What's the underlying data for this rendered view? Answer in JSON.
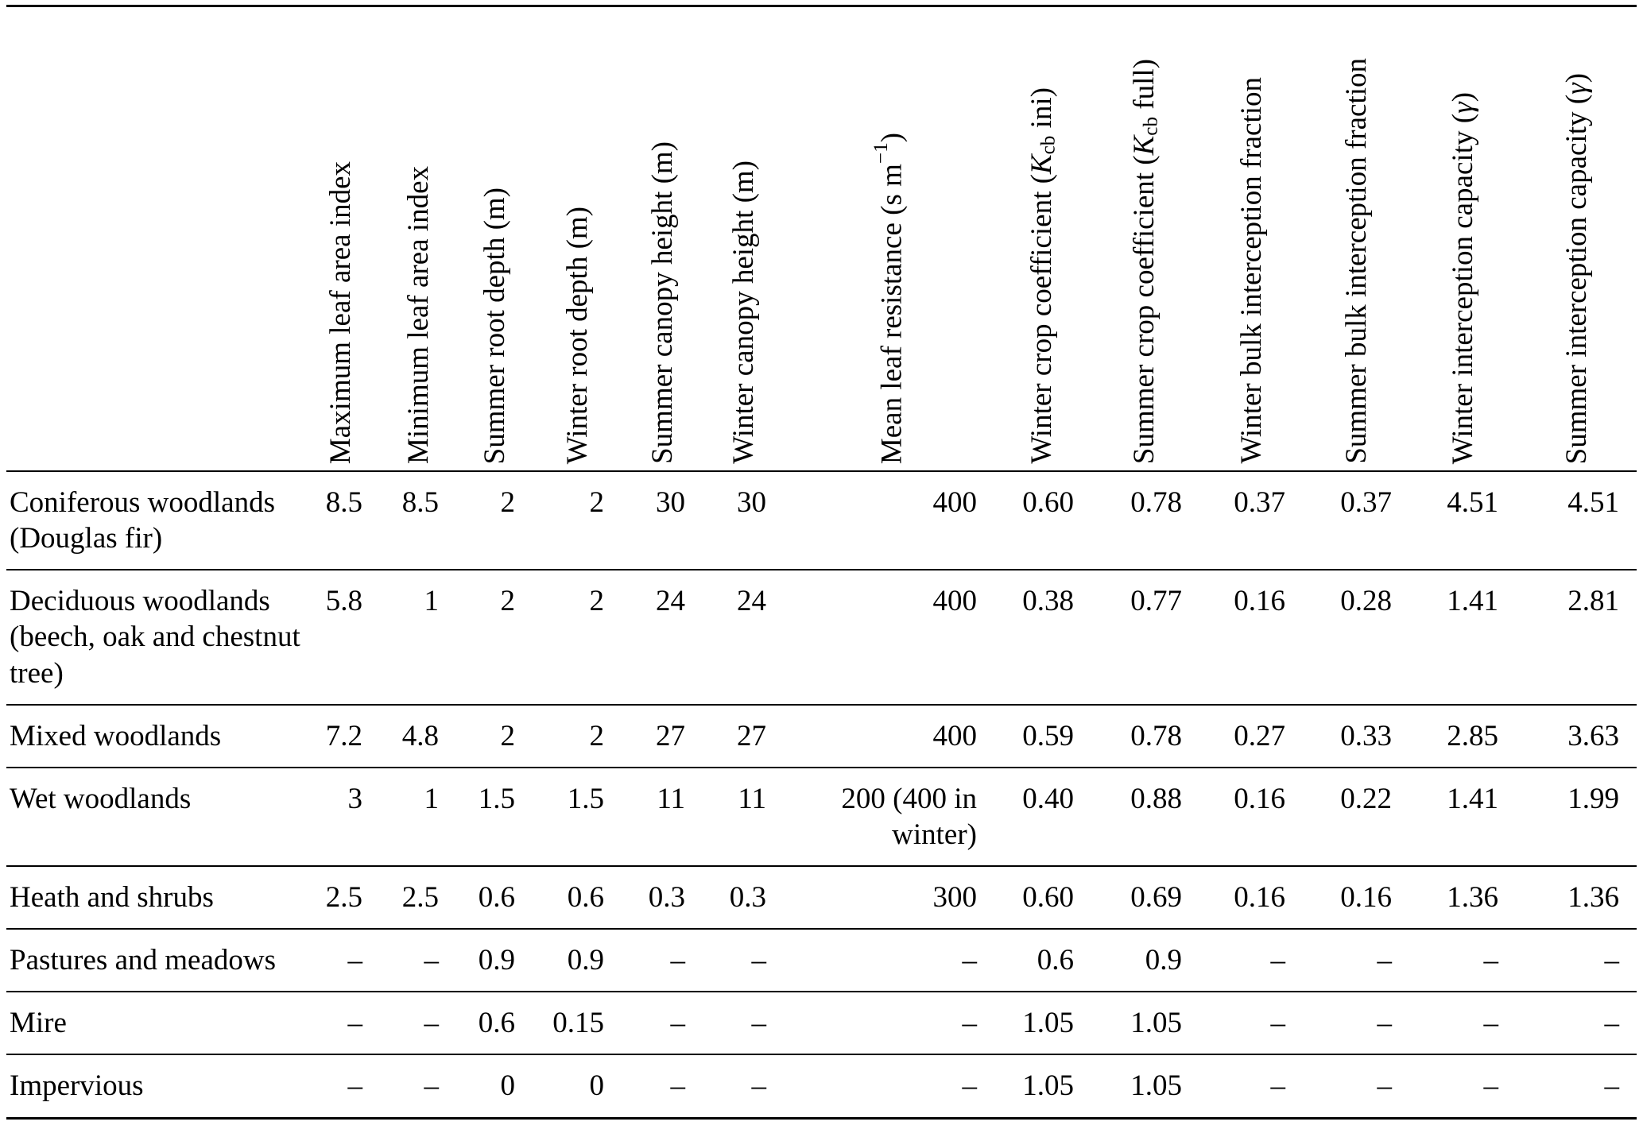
{
  "page": {
    "background": "#ffffff",
    "text_color": "#000000",
    "rule_color": "#000000"
  },
  "table": {
    "row_label_header": "",
    "columns": [
      {
        "name": "maximum-leaf-area-index",
        "segments": [
          {
            "text": "Maximum leaf area index"
          }
        ]
      },
      {
        "name": "minimum-leaf-area-index",
        "segments": [
          {
            "text": "Minimum leaf area index"
          }
        ]
      },
      {
        "name": "summer-root-depth",
        "segments": [
          {
            "text": "Summer root depth (m)"
          }
        ]
      },
      {
        "name": "winter-root-depth",
        "segments": [
          {
            "text": "Winter root depth (m)"
          }
        ]
      },
      {
        "name": "summer-canopy-height",
        "segments": [
          {
            "text": "Summer canopy height (m)"
          }
        ]
      },
      {
        "name": "winter-canopy-height",
        "segments": [
          {
            "text": "Winter canopy height (m)"
          }
        ]
      },
      {
        "name": "mean-leaf-resistance",
        "segments": [
          {
            "text": "Mean leaf resistance (s m"
          },
          {
            "sup": "−1"
          },
          {
            "text": ")"
          }
        ]
      },
      {
        "name": "winter-crop-coefficient",
        "segments": [
          {
            "text": "Winter crop coefficient ("
          },
          {
            "italic": "K"
          },
          {
            "sub": "cb"
          },
          {
            "text": " ini)"
          }
        ]
      },
      {
        "name": "summer-crop-coefficient",
        "segments": [
          {
            "text": "Summer crop coefficient ("
          },
          {
            "italic": "K"
          },
          {
            "sub": "cb"
          },
          {
            "text": " full)"
          }
        ]
      },
      {
        "name": "winter-bulk-interception-fraction",
        "segments": [
          {
            "text": "Winter bulk interception fraction"
          }
        ]
      },
      {
        "name": "summer-bulk-interception-fraction",
        "segments": [
          {
            "text": "Summer bulk interception fraction"
          }
        ]
      },
      {
        "name": "winter-interception-capacity",
        "segments": [
          {
            "text": "Winter interception capacity ("
          },
          {
            "italic": "γ"
          },
          {
            "text": ")"
          }
        ]
      },
      {
        "name": "summer-interception-capacity",
        "segments": [
          {
            "text": "Summer interception capacity ("
          },
          {
            "italic": "γ"
          },
          {
            "text": ")"
          }
        ]
      }
    ],
    "rows": [
      {
        "label": "Coniferous woodlands (Douglas fir)",
        "values": [
          "8.5",
          "8.5",
          "2",
          "2",
          "30",
          "30",
          "400",
          "0.60",
          "0.78",
          "0.37",
          "0.37",
          "4.51",
          "4.51"
        ]
      },
      {
        "label": "Deciduous woodlands (beech, oak and chestnut tree)",
        "values": [
          "5.8",
          "1",
          "2",
          "2",
          "24",
          "24",
          "400",
          "0.38",
          "0.77",
          "0.16",
          "0.28",
          "1.41",
          "2.81"
        ]
      },
      {
        "label": "Mixed woodlands",
        "values": [
          "7.2",
          "4.8",
          "2",
          "2",
          "27",
          "27",
          "400",
          "0.59",
          "0.78",
          "0.27",
          "0.33",
          "2.85",
          "3.63"
        ]
      },
      {
        "label": "Wet woodlands",
        "values": [
          "3",
          "1",
          "1.5",
          "1.5",
          "11",
          "11",
          "200 (400 in winter)",
          "0.40",
          "0.88",
          "0.16",
          "0.22",
          "1.41",
          "1.99"
        ]
      },
      {
        "label": "Heath and shrubs",
        "values": [
          "2.5",
          "2.5",
          "0.6",
          "0.6",
          "0.3",
          "0.3",
          "300",
          "0.60",
          "0.69",
          "0.16",
          "0.16",
          "1.36",
          "1.36"
        ]
      },
      {
        "label": "Pastures and meadows",
        "values": [
          "–",
          "–",
          "0.9",
          "0.9",
          "–",
          "–",
          "–",
          "0.6",
          "0.9",
          "–",
          "–",
          "–",
          "–"
        ]
      },
      {
        "label": "Mire",
        "values": [
          "–",
          "–",
          "0.6",
          "0.15",
          "–",
          "–",
          "–",
          "1.05",
          "1.05",
          "–",
          "–",
          "–",
          "–"
        ]
      },
      {
        "label": "Impervious",
        "values": [
          "–",
          "–",
          "0",
          "0",
          "–",
          "–",
          "–",
          "1.05",
          "1.05",
          "–",
          "–",
          "–",
          "–"
        ]
      }
    ]
  }
}
